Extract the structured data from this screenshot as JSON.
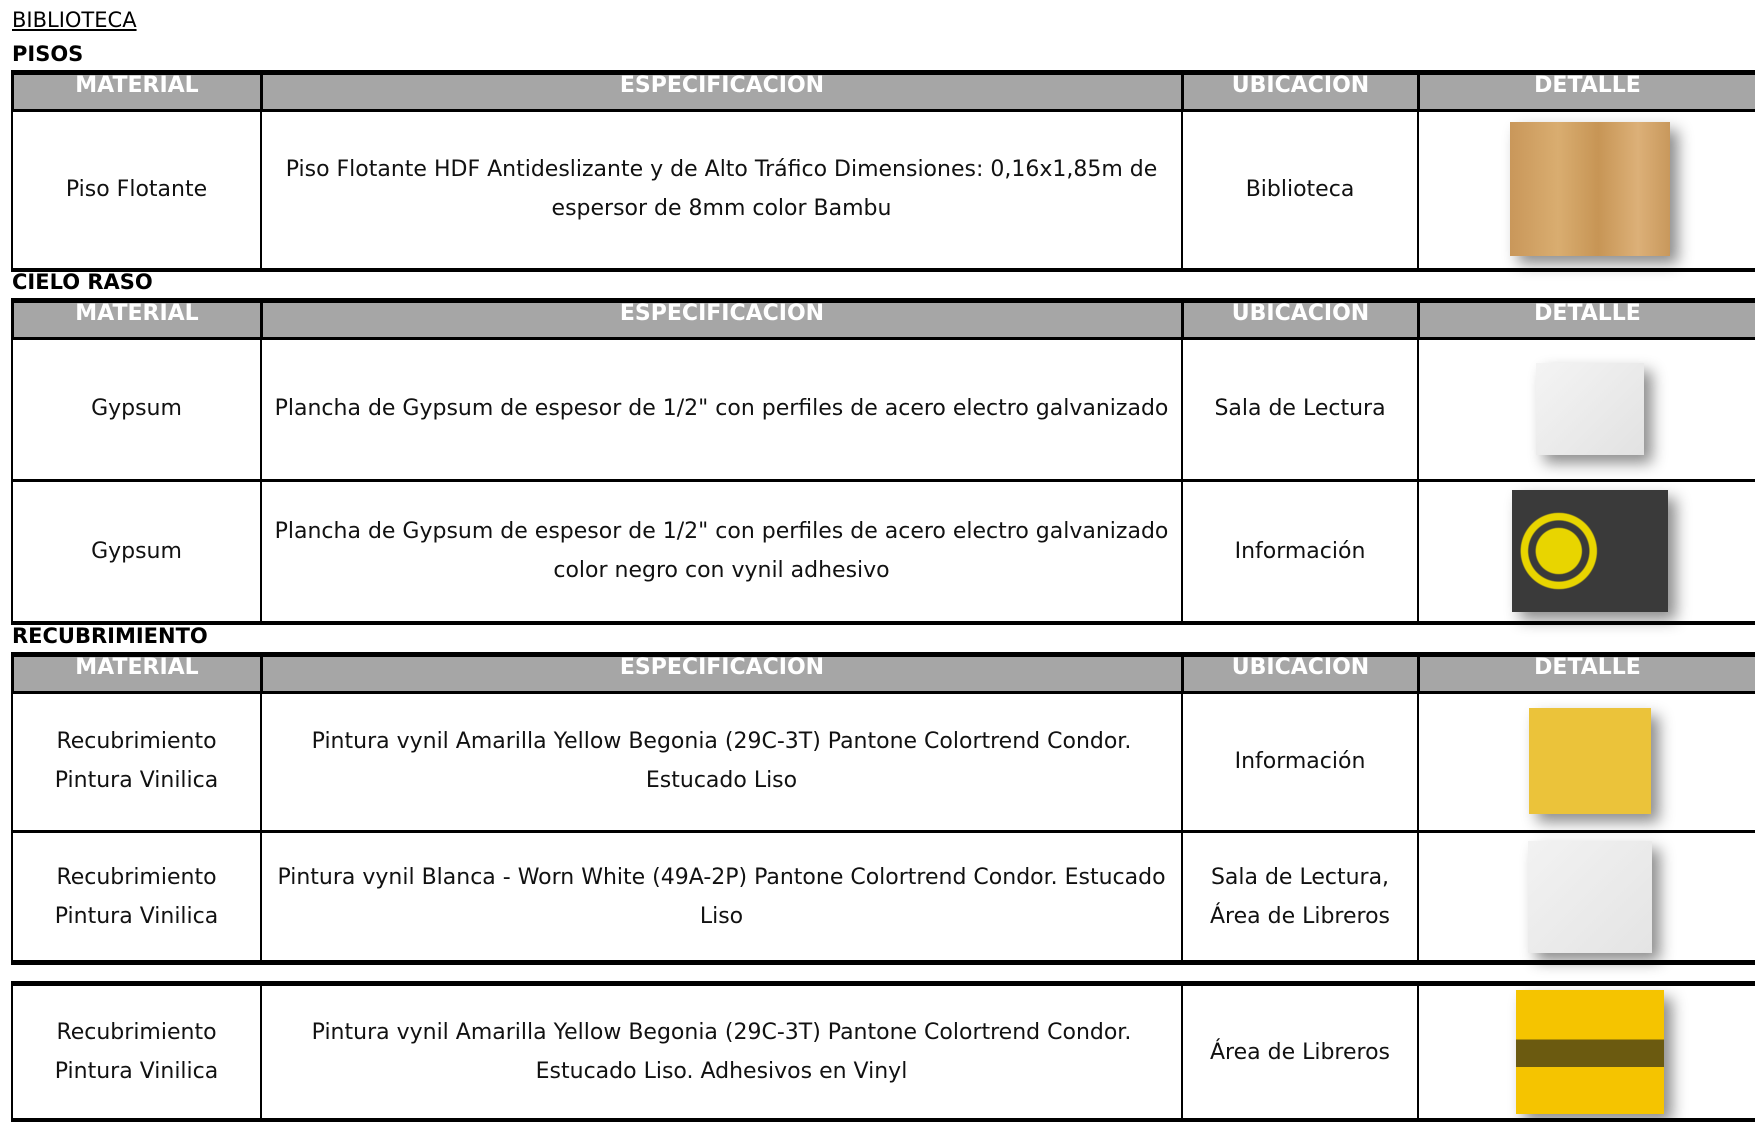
{
  "header": {
    "title": "BIBLIOTECA"
  },
  "sections": [
    {
      "title": "PISOS",
      "columns": [
        "MATERIAL",
        "ESPECIFICACION",
        "UBICACION",
        "DETALLE"
      ],
      "rows": [
        [
          "Piso Flotante",
          "Piso Flotante HDF Antideslizante y de Alto Tráfico Dimensiones: 0,16x1,85m de espersor de 8mm color Bambu",
          "Biblioteca"
        ]
      ]
    },
    {
      "title": "CIELO RASO",
      "columns": [
        "MATERIAL",
        "ESPECIFICACION",
        "UBICACION",
        "DETALLE"
      ],
      "rows": [
        [
          "Gypsum",
          "Plancha de Gypsum de espesor de 1/2\" con perfiles de acero electro galvanizado",
          "Sala de Lectura"
        ],
        [
          "Gypsum",
          "Plancha de Gypsum de espesor de 1/2\" con perfiles de acero electro galvanizado color negro con vynil adhesivo",
          "Información"
        ]
      ]
    },
    {
      "title": "RECUBRIMIENTO",
      "columns": [
        "MATERIAL",
        "ESPECIFICACION",
        "UBICACION",
        "DETALLE"
      ],
      "rows": [
        [
          "Recubrimiento Pintura Vinilica",
          "Pintura vynil Amarilla Yellow Begonia (29C-3T) Pantone Colortrend Condor. Estucado Liso",
          "Información"
        ],
        [
          "Recubrimiento Pintura Vinilica",
          "Pintura vynil Blanca - Worn White (49A-2P) Pantone Colortrend Condor. Estucado Liso",
          "Sala de Lectura, Área de Libreros"
        ],
        [
          "Recubrimiento Pintura Vinilica",
          "Pintura vynil Amarilla Yellow Begonia (29C-3T) Pantone Colortrend Condor. Estucado Liso. Adhesivos en Vinyl",
          "Área de Libreros"
        ]
      ]
    }
  ]
}
